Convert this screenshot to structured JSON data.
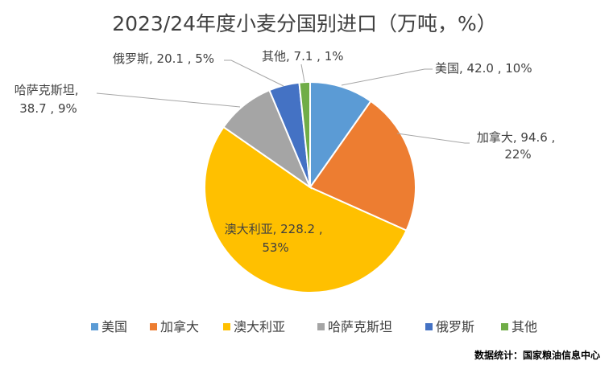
{
  "chart_data": {
    "type": "pie",
    "title": "2023/24年度小麦分国别进口（万吨，%）",
    "slices": [
      {
        "name": "美国",
        "value": 42.0,
        "percent": "10%",
        "label": "美国, 42.0 , 10%",
        "color": "#5b9bd5"
      },
      {
        "name": "加拿大",
        "value": 94.6,
        "percent": "22%",
        "label_lines": [
          "加拿大, 94.6 ,",
          "22%"
        ],
        "color": "#ed7d31"
      },
      {
        "name": "澳大利亚",
        "value": 228.2,
        "percent": "53%",
        "label_lines": [
          "澳大利亚, 228.2 ,",
          "53%"
        ],
        "color": "#ffc000"
      },
      {
        "name": "哈萨克斯坦",
        "value": 38.7,
        "percent": "9%",
        "label_lines": [
          "哈萨克斯坦,",
          "38.7 , 9%"
        ],
        "color": "#a5a5a5"
      },
      {
        "name": "俄罗斯",
        "value": 20.1,
        "percent": "5%",
        "label": "俄罗斯, 20.1 , 5%",
        "color": "#4472c4"
      },
      {
        "name": "其他",
        "value": 7.1,
        "percent": "1%",
        "label": "其他, 7.1 , 1%",
        "color": "#70ad47"
      }
    ],
    "legend": {
      "position": "bottom",
      "items": [
        "美国",
        "加拿大",
        "澳大利亚",
        "哈萨克斯坦",
        "俄罗斯",
        "其他"
      ]
    }
  },
  "source": "数据统计：国家粮油信息中心"
}
